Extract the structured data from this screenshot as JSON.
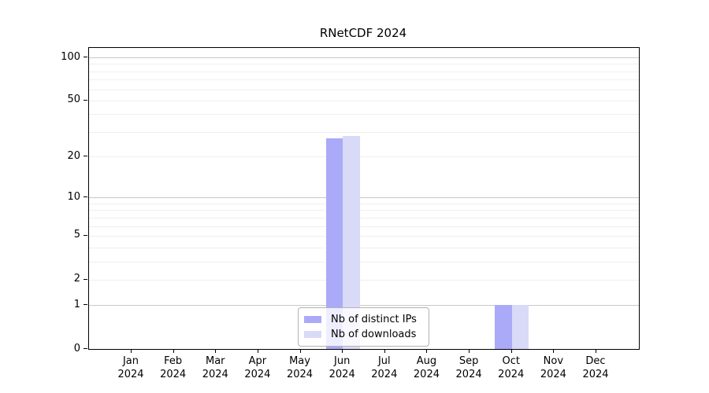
{
  "title": "RNetCDF 2024",
  "chart_data": {
    "type": "bar",
    "title": "RNetCDF 2024",
    "categories": [
      "Jan",
      "Feb",
      "Mar",
      "Apr",
      "May",
      "Jun",
      "Jul",
      "Aug",
      "Sep",
      "Oct",
      "Nov",
      "Dec"
    ],
    "year_label": "2024",
    "series": [
      {
        "name": "Nb of distinct IPs",
        "color": "#aaaaf8",
        "values": [
          0,
          0,
          0,
          0,
          0,
          27,
          0,
          0,
          0,
          1,
          0,
          0
        ]
      },
      {
        "name": "Nb of downloads",
        "color": "#d9d9f8",
        "values": [
          0,
          0,
          0,
          0,
          0,
          28,
          0,
          0,
          0,
          1,
          0,
          0
        ]
      }
    ],
    "yscale": "log1p",
    "yticks": [
      0,
      1,
      2,
      5,
      10,
      20,
      50,
      100
    ],
    "ylim": [
      0,
      116
    ],
    "grid": true,
    "legend_position": "lower center",
    "colors": {
      "major_gridline": "#c9c9c9",
      "minor_gridline": "#efefef",
      "axis": "#000000",
      "legend_border": "#b3b3b3",
      "legend_background": "rgba(255,255,255,0.8)"
    }
  }
}
